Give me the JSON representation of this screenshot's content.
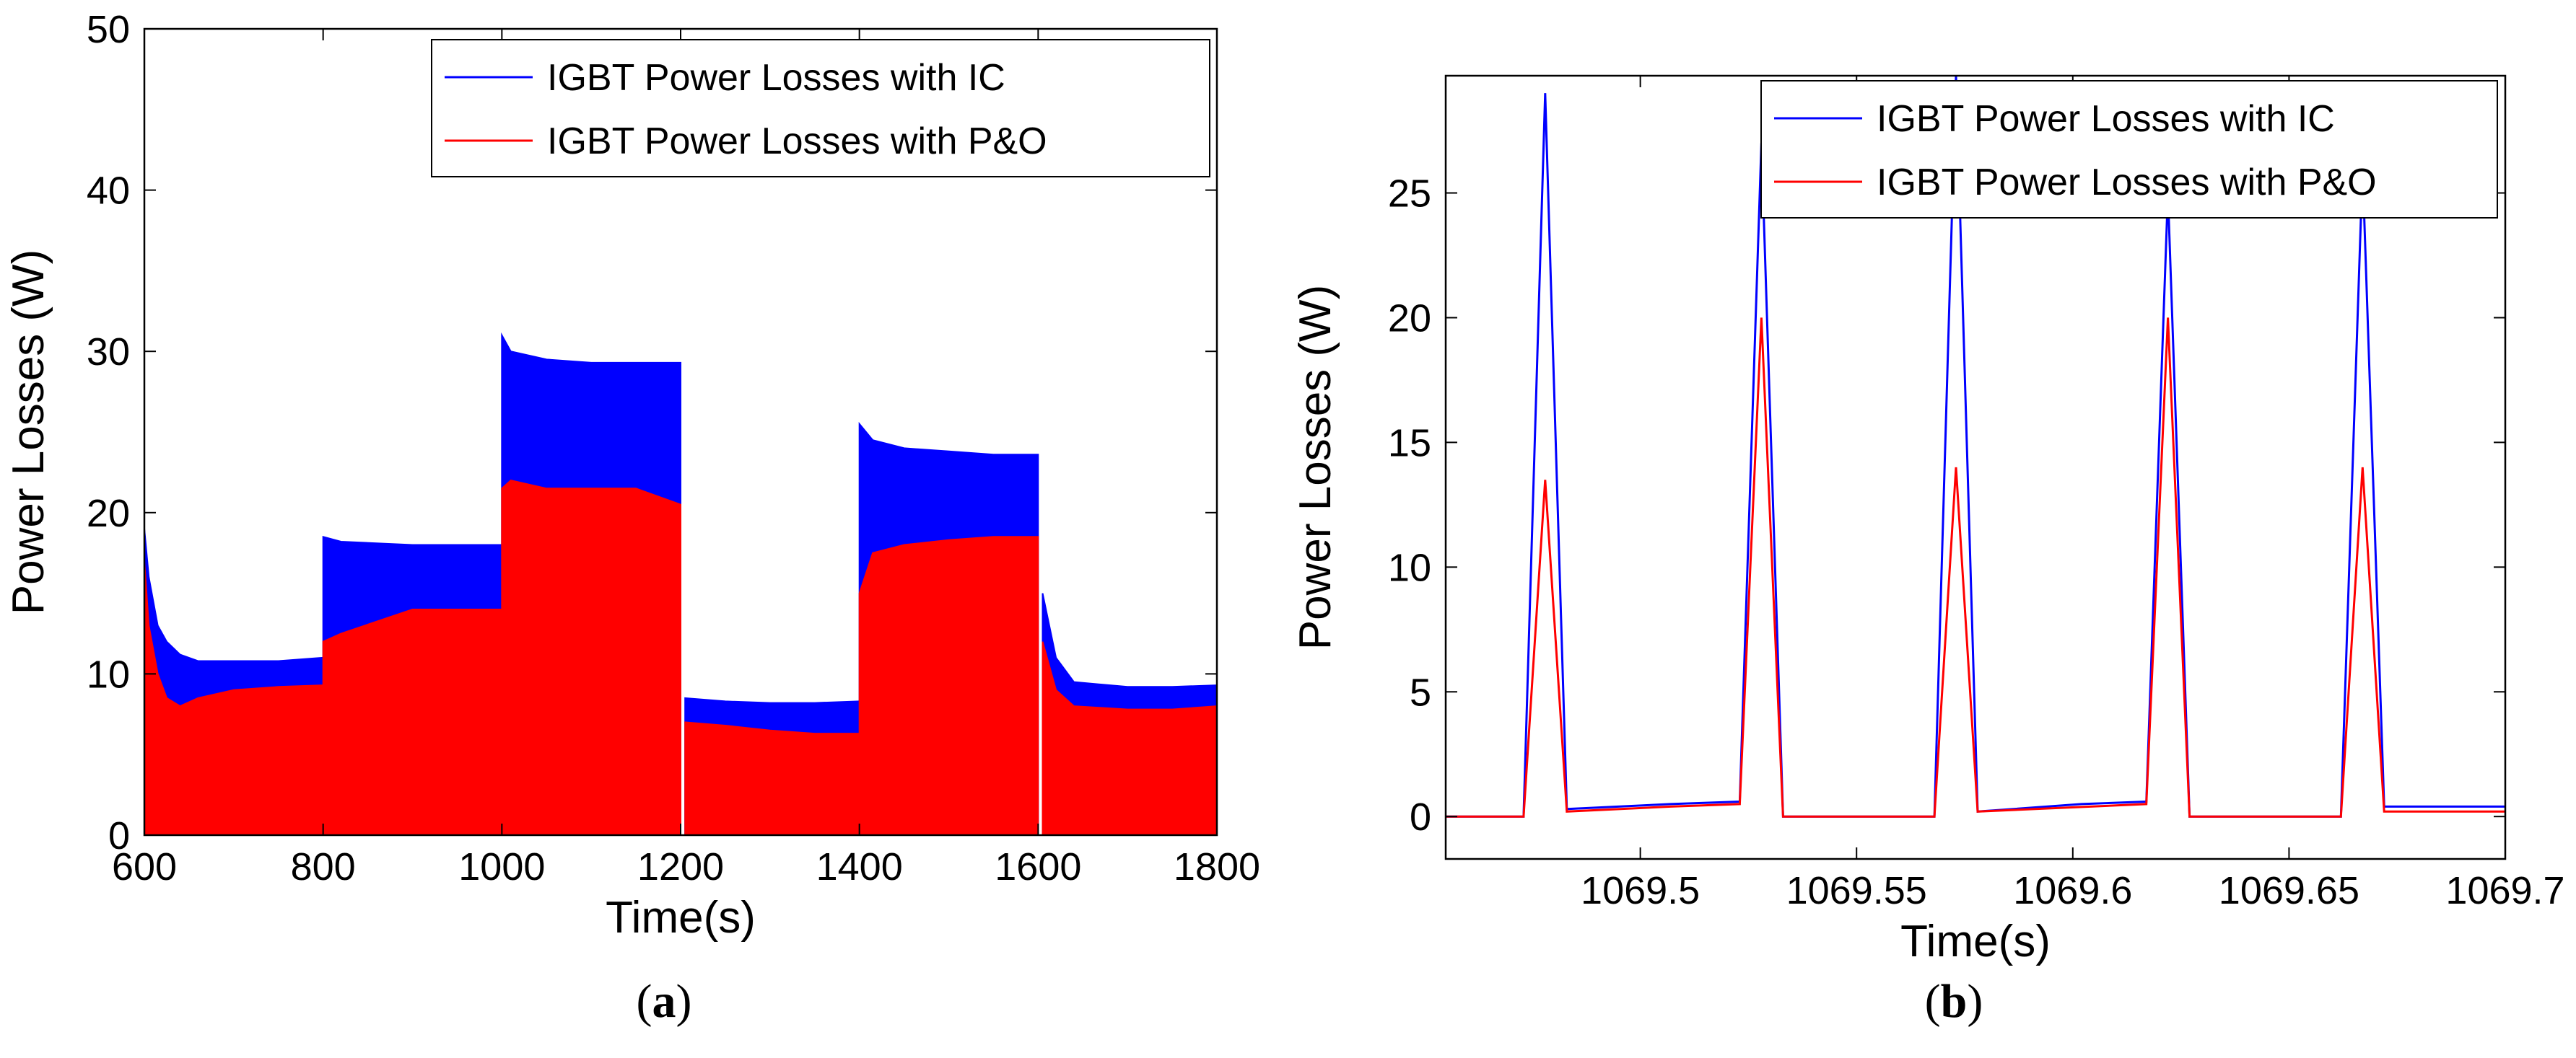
{
  "colors": {
    "ic": "#0000ff",
    "po": "#ff0000"
  },
  "chart_data": [
    {
      "type": "area",
      "caption_letter": "a",
      "caption_open": "(",
      "caption_close": ")",
      "xlabel": "Time(s)",
      "ylabel": "Power Losses (W)",
      "xlim": [
        600,
        1800
      ],
      "ylim": [
        0,
        50
      ],
      "xticks": [
        600,
        800,
        1000,
        1200,
        1400,
        1600,
        1800
      ],
      "yticks": [
        0,
        10,
        20,
        30,
        40,
        50
      ],
      "legend_position": "top-right",
      "series": [
        {
          "name": "IGBT Power Losses with IC",
          "color": "#0000ff",
          "segments": [
            {
              "x": [
                600,
                605,
                615,
                625,
                640,
                660,
                700,
                750,
                799
              ],
              "y": [
                19,
                16,
                13,
                12,
                11.2,
                10.8,
                10.8,
                10.8,
                11
              ]
            },
            {
              "x": [
                800,
                820,
                900,
                999
              ],
              "y": [
                18.5,
                18.2,
                18,
                18
              ]
            },
            {
              "x": [
                1000,
                1010,
                1050,
                1100,
                1150,
                1200
              ],
              "y": [
                31,
                30,
                29.5,
                29.3,
                29.3,
                29.3
              ]
            },
            {
              "x": [
                1205,
                1250,
                1300,
                1350,
                1399
              ],
              "y": [
                8.5,
                8.3,
                8.2,
                8.2,
                8.3
              ]
            },
            {
              "x": [
                1400,
                1415,
                1450,
                1500,
                1550,
                1600
              ],
              "y": [
                25.5,
                24.5,
                24,
                23.8,
                23.6,
                23.6
              ]
            },
            {
              "x": [
                1605,
                1620,
                1640,
                1700,
                1750,
                1800
              ],
              "y": [
                15,
                11,
                9.5,
                9.2,
                9.2,
                9.3
              ]
            }
          ]
        },
        {
          "name": "IGBT Power Losses with P&O",
          "color": "#ff0000",
          "segments": [
            {
              "x": [
                600,
                605,
                615,
                625,
                640,
                660,
                700,
                750,
                799
              ],
              "y": [
                17,
                13,
                10,
                8.5,
                8,
                8.5,
                9,
                9.2,
                9.3
              ]
            },
            {
              "x": [
                800,
                820,
                900,
                999
              ],
              "y": [
                12,
                12.5,
                14,
                14
              ]
            },
            {
              "x": [
                1000,
                1010,
                1050,
                1100,
                1150,
                1200
              ],
              "y": [
                21.5,
                22,
                21.5,
                21.5,
                21.5,
                20.5
              ]
            },
            {
              "x": [
                1205,
                1250,
                1300,
                1350,
                1399
              ],
              "y": [
                7,
                6.8,
                6.5,
                6.3,
                6.3
              ]
            },
            {
              "x": [
                1400,
                1415,
                1450,
                1500,
                1550,
                1600
              ],
              "y": [
                15,
                17.5,
                18,
                18.3,
                18.5,
                18.5
              ]
            },
            {
              "x": [
                1605,
                1620,
                1640,
                1700,
                1750,
                1800
              ],
              "y": [
                12,
                9,
                8,
                7.8,
                7.8,
                8
              ]
            }
          ]
        }
      ]
    },
    {
      "type": "line",
      "caption_letter": "b",
      "caption_open": "(",
      "caption_close": ")",
      "xlabel": "Time(s)",
      "ylabel": "Power Losses (W)",
      "xlim": [
        1069.455,
        1069.7
      ],
      "ylim": [
        -1.7,
        29.7
      ],
      "xticks": [
        1069.5,
        1069.55,
        1069.6,
        1069.65,
        1069.7
      ],
      "xtick_labels": [
        "1069.5",
        "1069.55",
        "1069.6",
        "1069.65",
        "1069.7"
      ],
      "yticks": [
        0,
        5,
        10,
        15,
        20,
        25
      ],
      "legend_position": "top-right",
      "series": [
        {
          "name": "IGBT Power Losses with IC",
          "color": "#0000ff",
          "x": [
            1069.455,
            1069.46,
            1069.473,
            1069.478,
            1069.483,
            1069.483,
            1069.507,
            1069.523,
            1069.528,
            1069.533,
            1069.543,
            1069.568,
            1069.573,
            1069.578,
            1069.578,
            1069.602,
            1069.617,
            1069.622,
            1069.627,
            1069.642,
            1069.662,
            1069.667,
            1069.672,
            1069.672,
            1069.7
          ],
          "y": [
            0,
            0,
            0,
            29,
            0.3,
            0.3,
            0.5,
            0.6,
            27,
            0,
            0,
            0,
            29.7,
            0.2,
            0.2,
            0.5,
            0.6,
            25,
            0,
            0,
            0,
            26,
            0.4,
            0.4,
            0.4
          ]
        },
        {
          "name": "IGBT Power Losses with P&O",
          "color": "#ff0000",
          "x": [
            1069.455,
            1069.46,
            1069.473,
            1069.478,
            1069.483,
            1069.507,
            1069.523,
            1069.528,
            1069.533,
            1069.568,
            1069.573,
            1069.578,
            1069.617,
            1069.622,
            1069.627,
            1069.662,
            1069.667,
            1069.672,
            1069.7
          ],
          "y": [
            0,
            0,
            0,
            13.5,
            0.2,
            0.4,
            0.5,
            20,
            0,
            0,
            14,
            0.2,
            0.5,
            20,
            0,
            0,
            14,
            0.2,
            0.2
          ]
        }
      ]
    }
  ]
}
